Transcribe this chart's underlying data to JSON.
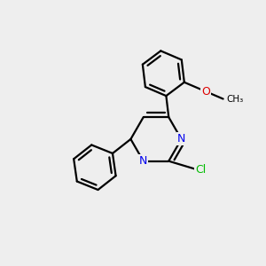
{
  "bg_color": "#eeeeee",
  "bond_color": "#000000",
  "lw": 1.6,
  "dbo": 0.055,
  "N_color": "#0000ee",
  "O_color": "#dd0000",
  "Cl_color": "#00bb00",
  "C_color": "#000000",
  "xlim": [
    -1.6,
    1.6
  ],
  "ylim": [
    -1.9,
    1.5
  ]
}
